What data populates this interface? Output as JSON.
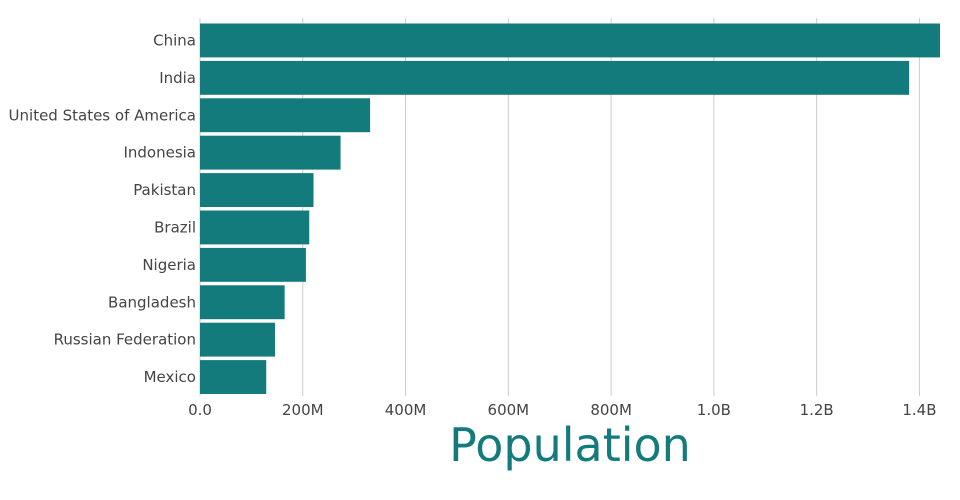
{
  "chart_data": {
    "type": "bar",
    "orientation": "horizontal",
    "categories": [
      "China",
      "India",
      "United States of America",
      "Indonesia",
      "Pakistan",
      "Brazil",
      "Nigeria",
      "Bangladesh",
      "Russian Federation",
      "Mexico"
    ],
    "values": [
      1440000000,
      1380000000,
      331000000,
      273500000,
      220900000,
      212600000,
      206100000,
      164700000,
      145900000,
      128900000
    ],
    "xlabel": "Population",
    "ylabel": "",
    "xlim": [
      0,
      1440000000
    ],
    "x_ticks": [
      {
        "value": 0,
        "label": "0.0"
      },
      {
        "value": 200000000,
        "label": "200M"
      },
      {
        "value": 400000000,
        "label": "400M"
      },
      {
        "value": 600000000,
        "label": "600M"
      },
      {
        "value": 800000000,
        "label": "800M"
      },
      {
        "value": 1000000000,
        "label": "1.0B"
      },
      {
        "value": 1200000000,
        "label": "1.2B"
      },
      {
        "value": 1400000000,
        "label": "1.4B"
      }
    ],
    "grid": "vertical",
    "bar_color": "#147b7d",
    "title_color": "#147b7d"
  }
}
